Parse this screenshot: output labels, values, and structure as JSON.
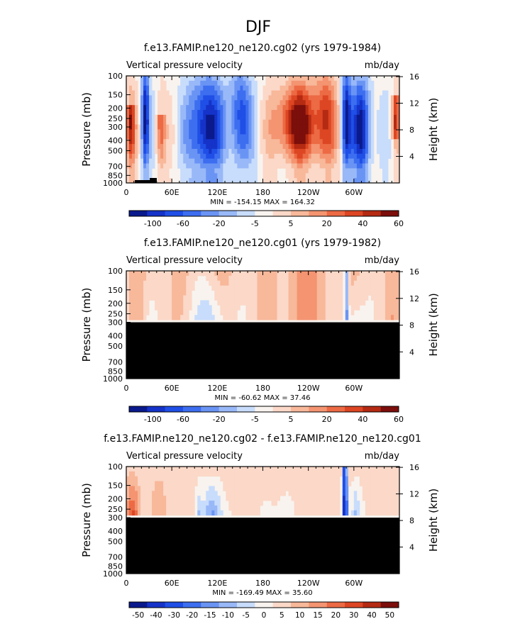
{
  "figure_title": "DJF",
  "colors": {
    "cool": [
      "#0a1a8c",
      "#1533c8",
      "#1f4fe6",
      "#3d6ef0",
      "#6a94f4",
      "#98b8f8",
      "#c8dcfc"
    ],
    "neutral": "#f8f3ee",
    "warm": [
      "#fbd8c8",
      "#f8b89a",
      "#f49471",
      "#ec6a44",
      "#dd4623",
      "#b42a12",
      "#7c0e0b"
    ],
    "masked": "#000000"
  },
  "chart_data": [
    {
      "type": "heatmap",
      "title": "f.e13.FAMIP.ne120_ne120.cg02 (yrs 1979-1984)",
      "left_label": "Vertical pressure velocity",
      "units_label": "mb/day",
      "xlabel": "",
      "ylabel": "Pressure (mb)",
      "ylabel_right": "Height (km)",
      "x_ticks": [
        "0",
        "60E",
        "120E",
        "180",
        "120W",
        "60W"
      ],
      "y_ticks": [
        "100",
        "150",
        "200",
        "250",
        "300",
        "400",
        "500",
        "700",
        "850",
        "1000"
      ],
      "y_ticks_right": [
        "16",
        "12",
        "8",
        "4"
      ],
      "xlim": [
        0,
        360
      ],
      "ylim": [
        1000,
        100
      ],
      "masked_below_mb": null,
      "min_max_text": "MIN = -154.15   MAX = 164.32",
      "colorbar_labels": [
        "-100",
        "-60",
        "-20",
        "-5",
        "5",
        "20",
        "40",
        "60"
      ],
      "stats": {
        "min": -154.15,
        "max": 164.32
      }
    },
    {
      "type": "heatmap",
      "title": "f.e13.FAMIP.ne120_ne120.cg01 (yrs 1979-1982)",
      "left_label": "Vertical pressure velocity",
      "units_label": "mb/day",
      "xlabel": "",
      "ylabel": "Pressure (mb)",
      "ylabel_right": "Height (km)",
      "x_ticks": [
        "0",
        "60E",
        "120E",
        "180",
        "120W",
        "60W"
      ],
      "y_ticks": [
        "100",
        "150",
        "200",
        "250",
        "300",
        "400",
        "500",
        "700",
        "850",
        "1000"
      ],
      "y_ticks_right": [
        "16",
        "12",
        "8",
        "4"
      ],
      "xlim": [
        0,
        360
      ],
      "ylim": [
        1000,
        100
      ],
      "masked_below_mb": 300,
      "min_max_text": "MIN = -60.62   MAX =  37.46",
      "colorbar_labels": [
        "-100",
        "-60",
        "-20",
        "-5",
        "5",
        "20",
        "40",
        "60"
      ],
      "stats": {
        "min": -60.62,
        "max": 37.46
      }
    },
    {
      "type": "heatmap",
      "title": "f.e13.FAMIP.ne120_ne120.cg02 - f.e13.FAMIP.ne120_ne120.cg01",
      "left_label": "Vertical pressure velocity",
      "units_label": "mb/day",
      "xlabel": "",
      "ylabel": "Pressure (mb)",
      "ylabel_right": "Height (km)",
      "x_ticks": [
        "0",
        "60E",
        "120E",
        "180",
        "120W",
        "60W"
      ],
      "y_ticks": [
        "100",
        "150",
        "200",
        "250",
        "300",
        "400",
        "500",
        "700",
        "850",
        "1000"
      ],
      "y_ticks_right": [
        "16",
        "12",
        "8",
        "4"
      ],
      "xlim": [
        0,
        360
      ],
      "ylim": [
        1000,
        100
      ],
      "masked_below_mb": 300,
      "min_max_text": "MIN = -169.49   MAX =  35.60",
      "colorbar_labels": [
        "-50",
        "-40",
        "-30",
        "-20",
        "-15",
        "-10",
        "-5",
        "0",
        "5",
        "10",
        "15",
        "20",
        "30",
        "40",
        "50"
      ],
      "stats": {
        "min": -169.49,
        "max": 35.6
      }
    }
  ]
}
